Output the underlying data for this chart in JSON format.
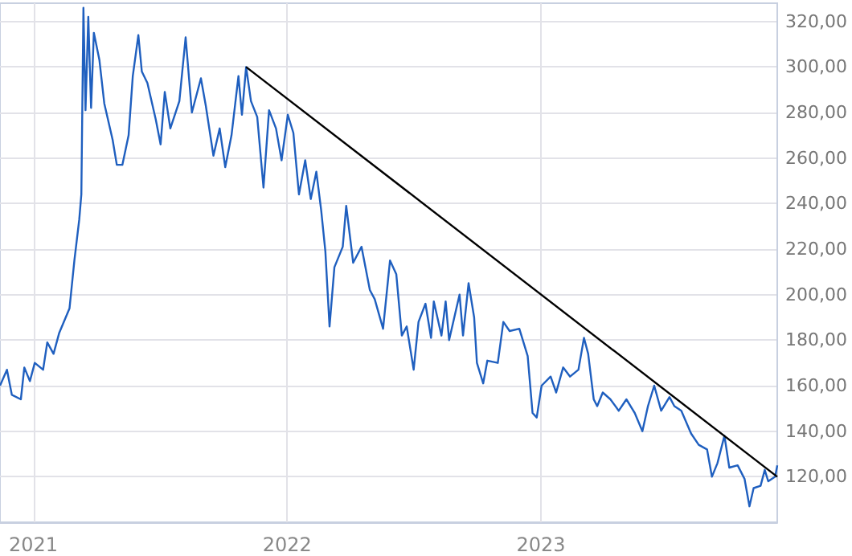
{
  "chart_data": {
    "type": "line",
    "xlim": [
      "2020-11-14",
      "2023-12-07"
    ],
    "xticks": [
      "2021",
      "2022",
      "2023"
    ],
    "ylim": [
      100,
      328
    ],
    "yticks": [
      {
        "value": 120,
        "label": "120,00"
      },
      {
        "value": 140,
        "label": "140,00"
      },
      {
        "value": 160,
        "label": "160,00"
      },
      {
        "value": 180,
        "label": "180,00"
      },
      {
        "value": 200,
        "label": "200,00"
      },
      {
        "value": 220,
        "label": "220,00"
      },
      {
        "value": 240,
        "label": "240,00"
      },
      {
        "value": 260,
        "label": "260,00"
      },
      {
        "value": 280,
        "label": "280,00"
      },
      {
        "value": 300,
        "label": "300,00"
      },
      {
        "value": 320,
        "label": "320,00"
      }
    ],
    "grid": true,
    "marker": "none",
    "line_style": "solid",
    "series": [
      {
        "color": "#1f5fbf",
        "x": [
          "2020-11-14",
          "2020-11-24",
          "2020-12-01",
          "2020-12-14",
          "2020-12-19",
          "2020-12-27",
          "2021-01-03",
          "2021-01-15",
          "2021-01-21",
          "2021-01-30",
          "2021-02-07",
          "2021-02-22",
          "2021-03-01",
          "2021-03-08",
          "2021-03-11",
          "2021-03-14",
          "2021-03-17",
          "2021-03-21",
          "2021-03-25",
          "2021-03-29",
          "2021-04-06",
          "2021-04-13",
          "2021-04-25",
          "2021-05-01",
          "2021-05-09",
          "2021-05-18",
          "2021-05-24",
          "2021-06-01",
          "2021-06-06",
          "2021-06-14",
          "2021-06-26",
          "2021-07-03",
          "2021-07-09",
          "2021-07-17",
          "2021-07-30",
          "2021-08-08",
          "2021-08-17",
          "2021-08-30",
          "2021-09-06",
          "2021-09-17",
          "2021-09-26",
          "2021-10-04",
          "2021-10-13",
          "2021-10-23",
          "2021-10-28",
          "2021-11-03",
          "2021-11-10",
          "2021-11-19",
          "2021-11-28",
          "2021-12-06",
          "2021-12-16",
          "2021-12-24",
          "2022-01-02",
          "2022-01-10",
          "2022-01-18",
          "2022-01-27",
          "2022-02-04",
          "2022-02-12",
          "2022-02-19",
          "2022-02-25",
          "2022-03-03",
          "2022-03-10",
          "2022-03-22",
          "2022-03-27",
          "2022-04-06",
          "2022-04-18",
          "2022-04-30",
          "2022-05-07",
          "2022-05-19",
          "2022-05-29",
          "2022-06-07",
          "2022-06-15",
          "2022-06-22",
          "2022-07-02",
          "2022-07-09",
          "2022-07-19",
          "2022-07-27",
          "2022-07-31",
          "2022-08-11",
          "2022-08-17",
          "2022-08-22",
          "2022-08-31",
          "2022-09-06",
          "2022-09-11",
          "2022-09-19",
          "2022-09-27",
          "2022-10-01",
          "2022-10-10",
          "2022-10-16",
          "2022-10-31",
          "2022-11-08",
          "2022-11-17",
          "2022-12-01",
          "2022-12-13",
          "2022-12-20",
          "2022-12-26",
          "2023-01-02",
          "2023-01-15",
          "2023-01-23",
          "2023-02-02",
          "2023-02-12",
          "2023-02-24",
          "2023-03-04",
          "2023-03-10",
          "2023-03-18",
          "2023-03-23",
          "2023-03-31",
          "2023-04-11",
          "2023-04-23",
          "2023-05-04",
          "2023-05-16",
          "2023-05-27",
          "2023-06-04",
          "2023-06-13",
          "2023-06-23",
          "2023-07-05",
          "2023-07-12",
          "2023-07-22",
          "2023-08-05",
          "2023-08-16",
          "2023-08-28",
          "2023-09-04",
          "2023-09-12",
          "2023-09-22",
          "2023-09-29",
          "2023-10-11",
          "2023-10-21",
          "2023-10-28",
          "2023-11-03",
          "2023-11-13",
          "2023-11-19",
          "2023-11-24",
          "2023-12-04",
          "2023-12-07"
        ],
        "values": [
          160,
          167,
          156,
          154,
          168,
          162,
          170,
          167,
          179,
          174,
          183,
          194,
          215,
          233,
          244,
          326,
          281,
          322,
          282,
          315,
          303,
          284,
          268,
          257,
          257,
          270,
          296,
          314,
          298,
          293,
          277,
          266,
          289,
          273,
          285,
          313,
          280,
          295,
          283,
          261,
          273,
          256,
          270,
          296,
          279,
          300,
          285,
          278,
          247,
          281,
          273,
          259,
          279,
          271,
          244,
          259,
          242,
          254,
          237,
          219,
          186,
          212,
          221,
          239,
          214,
          221,
          202,
          198,
          185,
          215,
          209,
          182,
          186,
          167,
          188,
          196,
          181,
          197,
          182,
          197,
          180,
          192,
          200,
          182,
          205,
          190,
          170,
          161,
          171,
          170,
          188,
          184,
          185,
          173,
          148,
          146,
          160,
          164,
          157,
          168,
          164,
          167,
          181,
          174,
          154,
          151,
          157,
          154,
          149,
          154,
          148,
          140,
          151,
          160,
          149,
          155,
          151,
          149,
          139,
          134,
          132,
          120,
          126,
          138,
          124,
          125,
          119,
          107,
          115,
          116,
          123,
          118,
          120,
          125
        ]
      },
      {
        "color": "#000000",
        "x": [
          "2021-11-03",
          "2023-12-07"
        ],
        "values": [
          300,
          120
        ]
      }
    ]
  }
}
